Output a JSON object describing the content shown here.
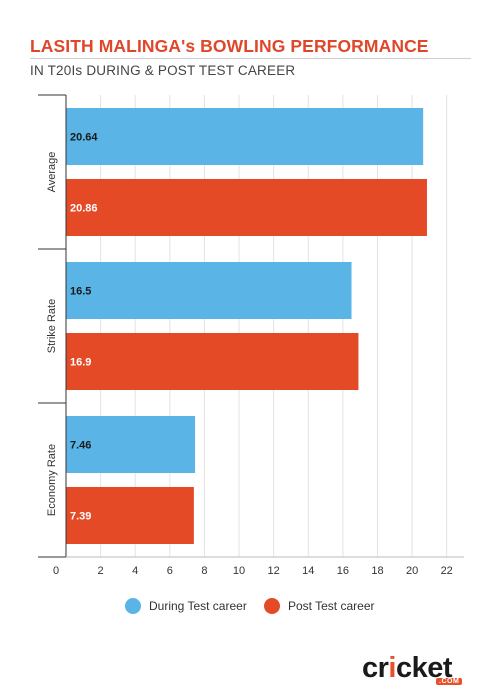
{
  "header": {
    "title": "LASITH MALINGA's BOWLING PERFORMANCE",
    "subtitle": "IN T20Is DURING & POST TEST CAREER"
  },
  "chart_data": {
    "type": "bar",
    "orientation": "horizontal",
    "categories": [
      "Average",
      "Strike Rate",
      "Economy Rate"
    ],
    "series": [
      {
        "name": "During Test career",
        "values": [
          20.64,
          16.5,
          7.46
        ],
        "color": "#5ab4e5"
      },
      {
        "name": "Post Test career",
        "values": [
          20.86,
          16.9,
          7.39
        ],
        "color": "#e54a27"
      }
    ],
    "xlim": [
      0,
      23
    ],
    "ticks": [
      0,
      2,
      4,
      6,
      8,
      10,
      12,
      14,
      16,
      18,
      20,
      22
    ],
    "grid": true,
    "legend": "bottom-center"
  },
  "logo": {
    "pre": "cr",
    "i": "i",
    "post": "cket",
    "tag": ".COM"
  }
}
